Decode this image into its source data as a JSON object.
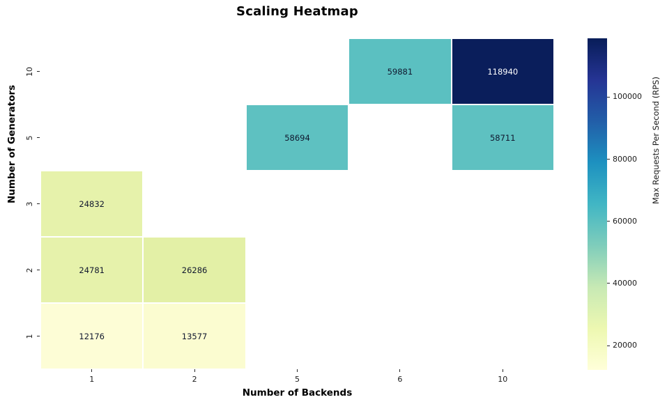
{
  "chart_data": {
    "type": "heatmap",
    "title": "Scaling Heatmap",
    "xlabel": "Number of Backends",
    "ylabel": "Number of Generators",
    "colorbar_label": "Max Requests Per Second (RPS)",
    "x_categories": [
      "1",
      "2",
      "5",
      "6",
      "10"
    ],
    "y_categories": [
      "10",
      "5",
      "3",
      "2",
      "1"
    ],
    "grid": "off",
    "legend_position": "colorbar-right",
    "cells": [
      {
        "row": 0,
        "col": 3,
        "x": "6",
        "y": "10",
        "value": "59881",
        "color": "#5bc0c1",
        "text_color": "#10172e"
      },
      {
        "row": 0,
        "col": 4,
        "x": "10",
        "y": "10",
        "value": "118940",
        "color": "#0a1e5b",
        "text_color": "#ffffff"
      },
      {
        "row": 1,
        "col": 2,
        "x": "5",
        "y": "5",
        "value": "58694",
        "color": "#5ec1c1",
        "text_color": "#10172e"
      },
      {
        "row": 1,
        "col": 4,
        "x": "10",
        "y": "5",
        "value": "58711",
        "color": "#5ec1c1",
        "text_color": "#10172e"
      },
      {
        "row": 2,
        "col": 0,
        "x": "1",
        "y": "3",
        "value": "24832",
        "color": "#e6f2ab",
        "text_color": "#10172e"
      },
      {
        "row": 3,
        "col": 0,
        "x": "1",
        "y": "2",
        "value": "24781",
        "color": "#e6f2ab",
        "text_color": "#10172e"
      },
      {
        "row": 3,
        "col": 1,
        "x": "2",
        "y": "2",
        "value": "26286",
        "color": "#e3f0a6",
        "text_color": "#10172e"
      },
      {
        "row": 4,
        "col": 0,
        "x": "1",
        "y": "1",
        "value": "12176",
        "color": "#fdfdd6",
        "text_color": "#10172e"
      },
      {
        "row": 4,
        "col": 1,
        "x": "2",
        "y": "1",
        "value": "13577",
        "color": "#fbfcd0",
        "text_color": "#10172e"
      }
    ],
    "colorbar": {
      "vmin": 12176,
      "vmax": 118940,
      "ticks": [
        "20000",
        "40000",
        "60000",
        "80000",
        "100000"
      ],
      "gradient": [
        {
          "pos": 0.0,
          "color": "#ffffd9"
        },
        {
          "pos": 0.125,
          "color": "#edf8b1"
        },
        {
          "pos": 0.25,
          "color": "#c7e9b4"
        },
        {
          "pos": 0.375,
          "color": "#7fcdbb"
        },
        {
          "pos": 0.5,
          "color": "#41b6c4"
        },
        {
          "pos": 0.625,
          "color": "#1d91c0"
        },
        {
          "pos": 0.75,
          "color": "#225ea8"
        },
        {
          "pos": 0.875,
          "color": "#253494"
        },
        {
          "pos": 1.0,
          "color": "#081d58"
        }
      ]
    },
    "colors": {
      "background": "#ffffff",
      "tick_color": "#262626",
      "nan_cell": "#ffffff"
    }
  }
}
